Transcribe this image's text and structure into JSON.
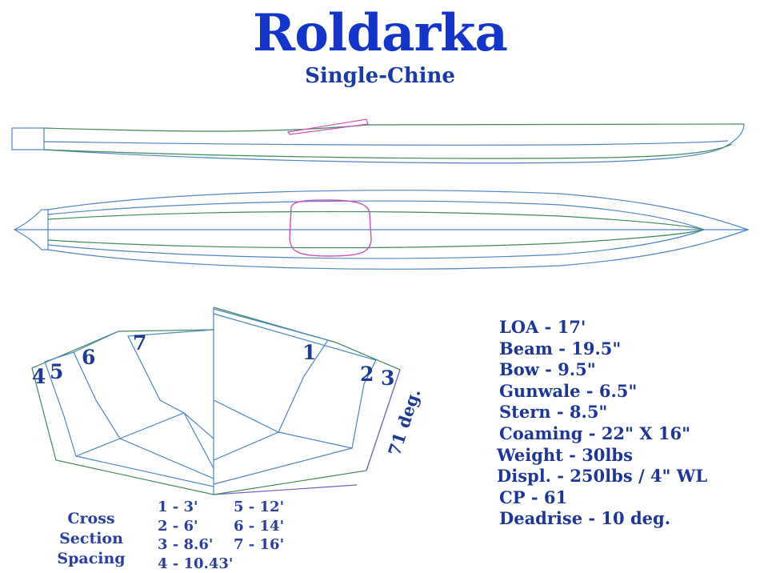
{
  "title": "Roldarka",
  "subtitle": "Single-Chine",
  "specs": [
    "LOA - 17'",
    "Beam - 19.5\"",
    "Bow - 9.5\"",
    "Gunwale - 6.5\"",
    "Stern - 8.5\"",
    "Coaming - 22\" X 16\"",
    "Weight - 30lbs",
    "Displ. - 250lbs / 4\" WL",
    "CP - 61",
    "Deadrise - 10 deg."
  ],
  "cross_section": {
    "label_line1": "Cross Section",
    "label_line2": "Spacing",
    "spacing_left": [
      "1 - 3'",
      "2 - 6'",
      "3 - 8.6'",
      "4 - 10.43'"
    ],
    "spacing_right": [
      "5 - 12'",
      "6 - 14'",
      "7 - 16'"
    ]
  },
  "stations": [
    "1",
    "2",
    "3",
    "4",
    "5",
    "6",
    "7"
  ],
  "angle_label": "71 deg.",
  "colors": {
    "title": "#1336c8",
    "text": "#1e3796",
    "hull_line": "#4c86c6",
    "chine_line": "#3d8a5a",
    "coaming": "#d24fb6",
    "keel": "#7a5cc9"
  }
}
